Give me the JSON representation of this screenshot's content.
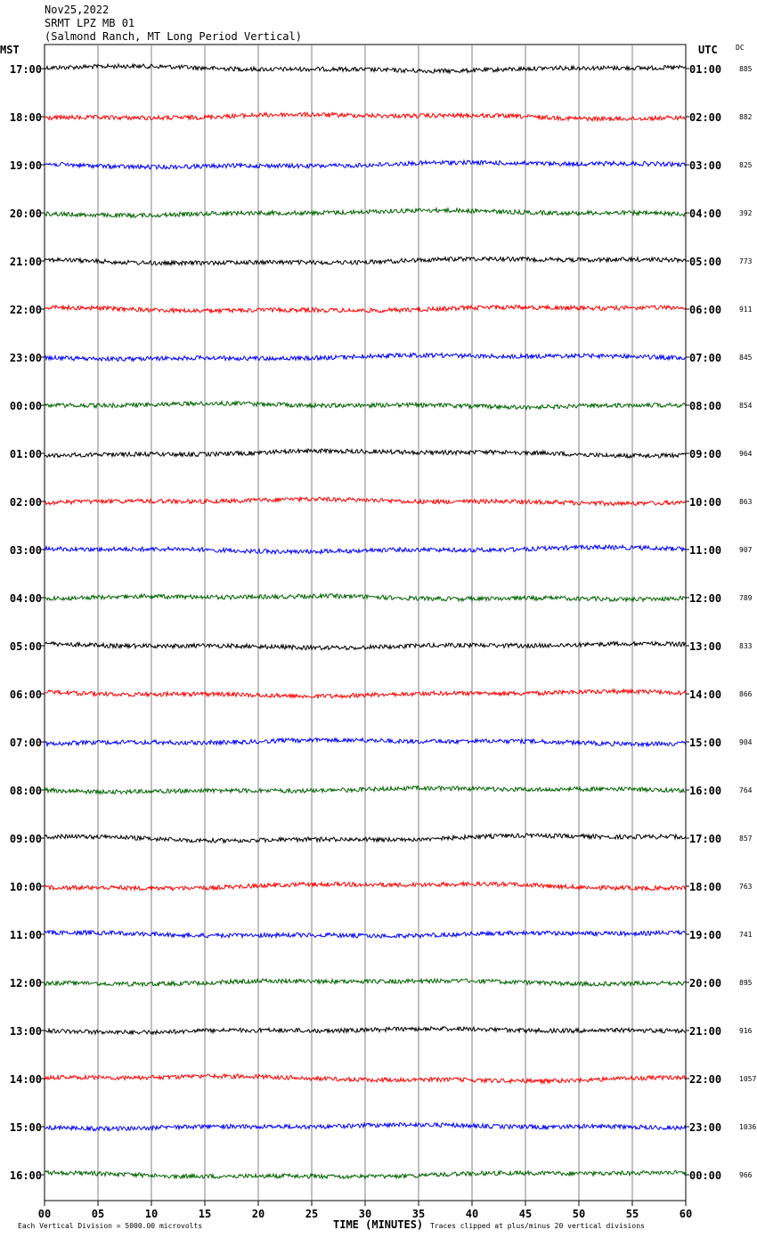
{
  "header": {
    "date": "Nov25,2022",
    "station": "SRMT LPZ MB 01",
    "location": "(Salmond Ranch, MT Long Period Vertical)"
  },
  "axes": {
    "left_label": "MST",
    "right_label": "UTC",
    "dc_label": "DC"
  },
  "footer": {
    "scale": "Each Vertical Division = 5000.00 microvolts",
    "xlabel": "TIME (MINUTES)",
    "clip_note": "Traces clipped at plus/minus 20 vertical divisions"
  },
  "colors": {
    "cycle": [
      "#000000",
      "#ff0000",
      "#0000ff",
      "#006400"
    ],
    "grid": "#808080"
  },
  "chart_data": {
    "type": "line",
    "title": "SRMT LPZ MB 01",
    "xlabel": "TIME (MINUTES)",
    "xlim": [
      0,
      60
    ],
    "x_ticks": [
      "00",
      "05",
      "10",
      "15",
      "20",
      "25",
      "30",
      "35",
      "40",
      "45",
      "50",
      "55",
      "60"
    ],
    "grid": true,
    "rows": [
      {
        "mst": "17:00",
        "utc": "01:00",
        "dc": "885",
        "color": "#000000"
      },
      {
        "mst": "18:00",
        "utc": "02:00",
        "dc": "882",
        "color": "#ff0000"
      },
      {
        "mst": "19:00",
        "utc": "03:00",
        "dc": "825",
        "color": "#0000ff"
      },
      {
        "mst": "20:00",
        "utc": "04:00",
        "dc": "392",
        "color": "#006400"
      },
      {
        "mst": "21:00",
        "utc": "05:00",
        "dc": "773",
        "color": "#000000"
      },
      {
        "mst": "22:00",
        "utc": "06:00",
        "dc": "911",
        "color": "#ff0000"
      },
      {
        "mst": "23:00",
        "utc": "07:00",
        "dc": "845",
        "color": "#0000ff"
      },
      {
        "mst": "00:00",
        "utc": "08:00",
        "dc": "854",
        "color": "#006400"
      },
      {
        "mst": "01:00",
        "utc": "09:00",
        "dc": "964",
        "color": "#000000"
      },
      {
        "mst": "02:00",
        "utc": "10:00",
        "dc": "863",
        "color": "#ff0000"
      },
      {
        "mst": "03:00",
        "utc": "11:00",
        "dc": "907",
        "color": "#0000ff"
      },
      {
        "mst": "04:00",
        "utc": "12:00",
        "dc": "789",
        "color": "#006400"
      },
      {
        "mst": "05:00",
        "utc": "13:00",
        "dc": "833",
        "color": "#000000"
      },
      {
        "mst": "06:00",
        "utc": "14:00",
        "dc": "866",
        "color": "#ff0000"
      },
      {
        "mst": "07:00",
        "utc": "15:00",
        "dc": "904",
        "color": "#0000ff"
      },
      {
        "mst": "08:00",
        "utc": "16:00",
        "dc": "764",
        "color": "#006400"
      },
      {
        "mst": "09:00",
        "utc": "17:00",
        "dc": "857",
        "color": "#000000"
      },
      {
        "mst": "10:00",
        "utc": "18:00",
        "dc": "763",
        "color": "#ff0000"
      },
      {
        "mst": "11:00",
        "utc": "19:00",
        "dc": "741",
        "color": "#0000ff"
      },
      {
        "mst": "12:00",
        "utc": "20:00",
        "dc": "895",
        "color": "#006400"
      },
      {
        "mst": "13:00",
        "utc": "21:00",
        "dc": "916",
        "color": "#000000"
      },
      {
        "mst": "14:00",
        "utc": "22:00",
        "dc": "1057",
        "color": "#ff0000"
      },
      {
        "mst": "15:00",
        "utc": "23:00",
        "dc": "1036",
        "color": "#0000ff"
      },
      {
        "mst": "16:00",
        "utc": "00:00",
        "dc": "966",
        "color": "#006400"
      }
    ]
  }
}
